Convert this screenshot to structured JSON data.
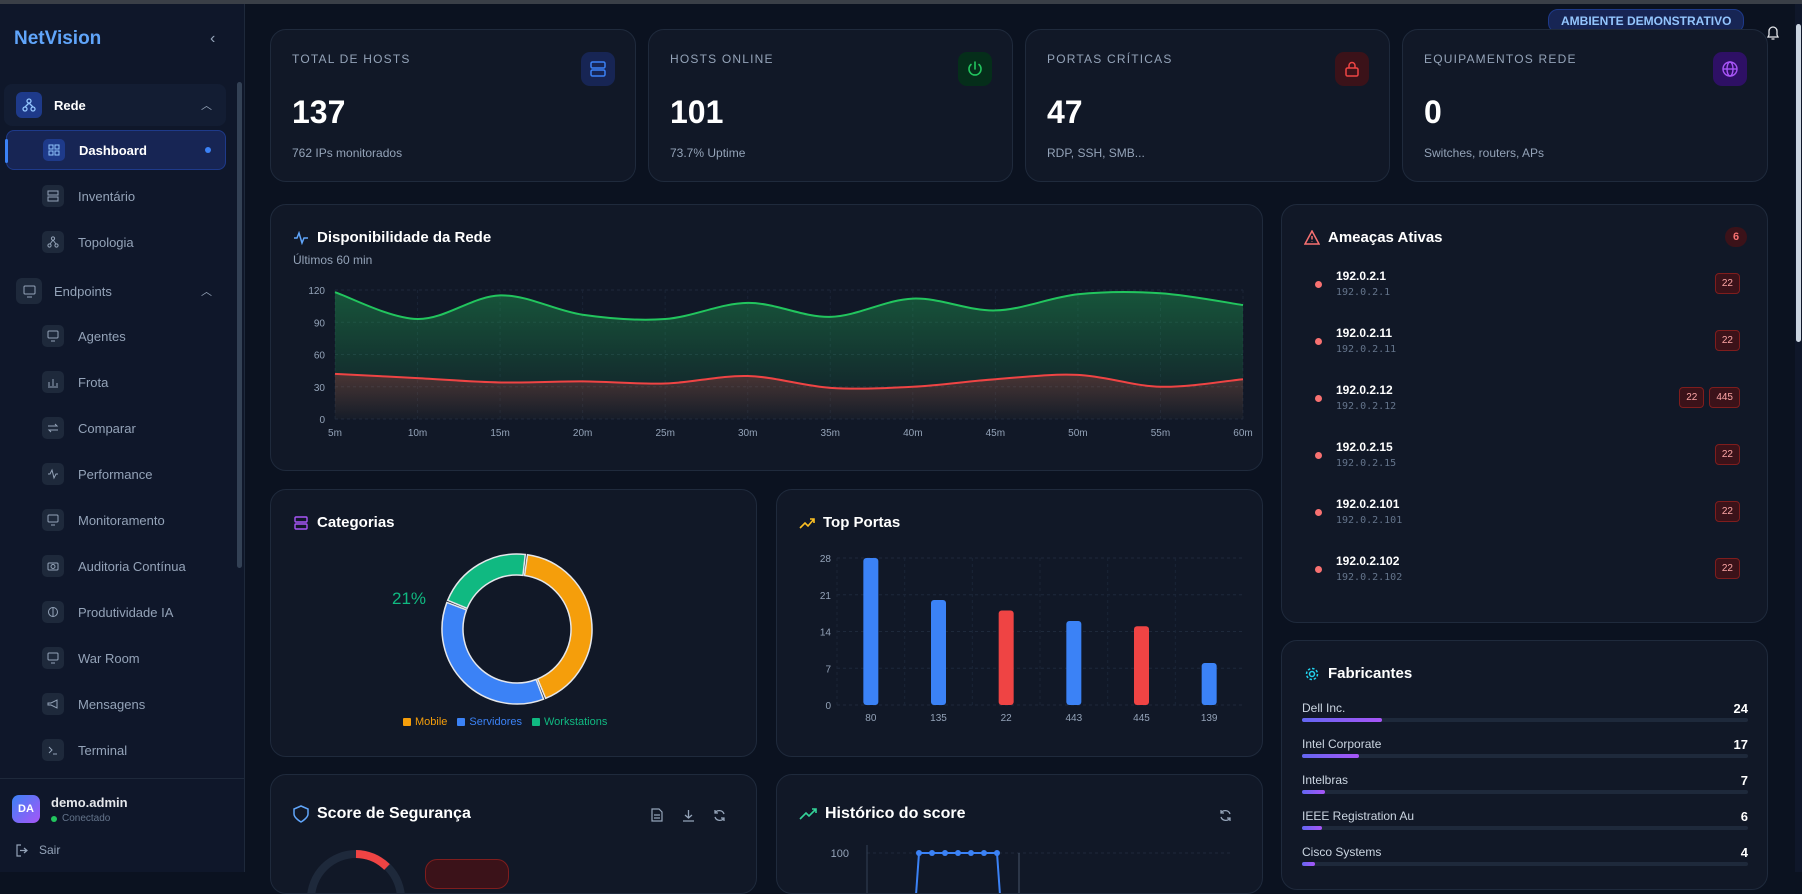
{
  "app": {
    "name": "NetVision",
    "environment_badge": "AMBIENTE DEMONSTRATIVO"
  },
  "sidebar": {
    "groups": [
      {
        "label": "Rede",
        "items": [
          {
            "label": "Dashboard",
            "active": true
          },
          {
            "label": "Inventário"
          },
          {
            "label": "Topologia"
          }
        ]
      },
      {
        "label": "Endpoints",
        "items": [
          {
            "label": "Agentes"
          },
          {
            "label": "Frota"
          },
          {
            "label": "Comparar"
          },
          {
            "label": "Performance"
          },
          {
            "label": "Monitoramento"
          },
          {
            "label": "Auditoria Contínua"
          },
          {
            "label": "Produtividade IA"
          },
          {
            "label": "War Room"
          },
          {
            "label": "Mensagens"
          },
          {
            "label": "Terminal"
          }
        ]
      }
    ],
    "user": {
      "initials": "DA",
      "name": "demo.admin",
      "status": "Conectado"
    },
    "logout": "Sair"
  },
  "stats": [
    {
      "label": "TOTAL DE HOSTS",
      "value": "137",
      "sub": "762 IPs monitorados",
      "icon": "server-icon",
      "color": "#3b82f6"
    },
    {
      "label": "HOSTS ONLINE",
      "value": "101",
      "sub": "73.7% Uptime",
      "icon": "power-icon",
      "color": "#22c55e"
    },
    {
      "label": "PORTAS CRÍTICAS",
      "value": "47",
      "sub": "RDP, SSH, SMB...",
      "icon": "lock-icon",
      "color": "#ef4444"
    },
    {
      "label": "EQUIPAMENTOS REDE",
      "value": "0",
      "sub": "Switches, routers, APs",
      "icon": "globe-icon",
      "color": "#a855f7"
    }
  ],
  "availability": {
    "title": "Disponibilidade da Rede",
    "subtitle": "Últimos 60 min"
  },
  "categories": {
    "title": "Categorias",
    "visible_pct": "21%"
  },
  "top_ports": {
    "title": "Top Portas"
  },
  "threats": {
    "title": "Ameaças Ativas",
    "count": "6",
    "rows": [
      {
        "ip": "192.0.2.1",
        "host": "192.0.2.1",
        "ports": [
          "22"
        ]
      },
      {
        "ip": "192.0.2.11",
        "host": "192.0.2.11",
        "ports": [
          "22"
        ]
      },
      {
        "ip": "192.0.2.12",
        "host": "192.0.2.12",
        "ports": [
          "22",
          "445"
        ]
      },
      {
        "ip": "192.0.2.15",
        "host": "192.0.2.15",
        "ports": [
          "22"
        ]
      },
      {
        "ip": "192.0.2.101",
        "host": "192.0.2.101",
        "ports": [
          "22"
        ]
      },
      {
        "ip": "192.0.2.102",
        "host": "192.0.2.102",
        "ports": [
          "22"
        ]
      }
    ]
  },
  "vendors": {
    "title": "Fabricantes",
    "rows": [
      {
        "name": "Dell Inc.",
        "count": 24
      },
      {
        "name": "Intel Corporate",
        "count": 17
      },
      {
        "name": "Intelbras",
        "count": 7
      },
      {
        "name": "IEEE Registration Au",
        "count": 6
      },
      {
        "name": "Cisco Systems",
        "count": 4
      }
    ]
  },
  "security_score": {
    "title": "Score de Segurança"
  },
  "score_history": {
    "title": "Histórico do score"
  },
  "chart_data": [
    {
      "type": "area",
      "x": [
        "5m",
        "10m",
        "15m",
        "20m",
        "25m",
        "30m",
        "35m",
        "40m",
        "45m",
        "50m",
        "55m",
        "60m"
      ],
      "ylim": [
        0,
        120
      ],
      "yticks": [
        0,
        30,
        60,
        90,
        120
      ],
      "series": [
        {
          "values": [
            118,
            93,
            115,
            97,
            93,
            108,
            95,
            112,
            101,
            116,
            117,
            106
          ],
          "color": "#22c55e"
        },
        {
          "values": [
            42,
            38,
            34,
            35,
            33,
            40,
            29,
            30,
            37,
            41,
            30,
            37
          ],
          "color": "#ef4444"
        }
      ]
    },
    {
      "type": "pie",
      "donut": true,
      "categories": [
        "Mobile",
        "Servidores",
        "Workstations"
      ],
      "values": [
        42,
        37,
        21
      ],
      "colors": [
        "#f59e0b",
        "#3b82f6",
        "#10b981"
      ]
    },
    {
      "type": "bar",
      "categories": [
        "80",
        "135",
        "22",
        "443",
        "445",
        "139"
      ],
      "values": [
        28,
        20,
        18,
        16,
        15,
        8
      ],
      "colors": [
        "#3b82f6",
        "#3b82f6",
        "#ef4444",
        "#3b82f6",
        "#ef4444",
        "#3b82f6"
      ],
      "ylim": [
        0,
        28
      ],
      "yticks": [
        0,
        7,
        14,
        21,
        28
      ]
    }
  ]
}
